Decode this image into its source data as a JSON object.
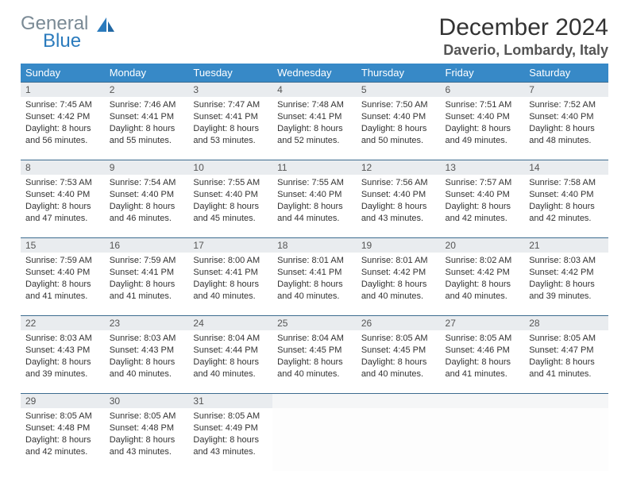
{
  "logo": {
    "word1": "General",
    "word2": "Blue"
  },
  "title": "December 2024",
  "subtitle": "Daverio, Lombardy, Italy",
  "colors": {
    "header_bg": "#3789c7",
    "header_text": "#ffffff",
    "daynum_bg": "#e9ecef",
    "row_border": "#3d6c8f"
  },
  "weekdays": [
    "Sunday",
    "Monday",
    "Tuesday",
    "Wednesday",
    "Thursday",
    "Friday",
    "Saturday"
  ],
  "weeks": [
    [
      {
        "n": "1",
        "sr": "7:45 AM",
        "ss": "4:42 PM",
        "h": "8",
        "m": "56"
      },
      {
        "n": "2",
        "sr": "7:46 AM",
        "ss": "4:41 PM",
        "h": "8",
        "m": "55"
      },
      {
        "n": "3",
        "sr": "7:47 AM",
        "ss": "4:41 PM",
        "h": "8",
        "m": "53"
      },
      {
        "n": "4",
        "sr": "7:48 AM",
        "ss": "4:41 PM",
        "h": "8",
        "m": "52"
      },
      {
        "n": "5",
        "sr": "7:50 AM",
        "ss": "4:40 PM",
        "h": "8",
        "m": "50"
      },
      {
        "n": "6",
        "sr": "7:51 AM",
        "ss": "4:40 PM",
        "h": "8",
        "m": "49"
      },
      {
        "n": "7",
        "sr": "7:52 AM",
        "ss": "4:40 PM",
        "h": "8",
        "m": "48"
      }
    ],
    [
      {
        "n": "8",
        "sr": "7:53 AM",
        "ss": "4:40 PM",
        "h": "8",
        "m": "47"
      },
      {
        "n": "9",
        "sr": "7:54 AM",
        "ss": "4:40 PM",
        "h": "8",
        "m": "46"
      },
      {
        "n": "10",
        "sr": "7:55 AM",
        "ss": "4:40 PM",
        "h": "8",
        "m": "45"
      },
      {
        "n": "11",
        "sr": "7:55 AM",
        "ss": "4:40 PM",
        "h": "8",
        "m": "44"
      },
      {
        "n": "12",
        "sr": "7:56 AM",
        "ss": "4:40 PM",
        "h": "8",
        "m": "43"
      },
      {
        "n": "13",
        "sr": "7:57 AM",
        "ss": "4:40 PM",
        "h": "8",
        "m": "42"
      },
      {
        "n": "14",
        "sr": "7:58 AM",
        "ss": "4:40 PM",
        "h": "8",
        "m": "42"
      }
    ],
    [
      {
        "n": "15",
        "sr": "7:59 AM",
        "ss": "4:40 PM",
        "h": "8",
        "m": "41"
      },
      {
        "n": "16",
        "sr": "7:59 AM",
        "ss": "4:41 PM",
        "h": "8",
        "m": "41"
      },
      {
        "n": "17",
        "sr": "8:00 AM",
        "ss": "4:41 PM",
        "h": "8",
        "m": "40"
      },
      {
        "n": "18",
        "sr": "8:01 AM",
        "ss": "4:41 PM",
        "h": "8",
        "m": "40"
      },
      {
        "n": "19",
        "sr": "8:01 AM",
        "ss": "4:42 PM",
        "h": "8",
        "m": "40"
      },
      {
        "n": "20",
        "sr": "8:02 AM",
        "ss": "4:42 PM",
        "h": "8",
        "m": "40"
      },
      {
        "n": "21",
        "sr": "8:03 AM",
        "ss": "4:42 PM",
        "h": "8",
        "m": "39"
      }
    ],
    [
      {
        "n": "22",
        "sr": "8:03 AM",
        "ss": "4:43 PM",
        "h": "8",
        "m": "39"
      },
      {
        "n": "23",
        "sr": "8:03 AM",
        "ss": "4:43 PM",
        "h": "8",
        "m": "40"
      },
      {
        "n": "24",
        "sr": "8:04 AM",
        "ss": "4:44 PM",
        "h": "8",
        "m": "40"
      },
      {
        "n": "25",
        "sr": "8:04 AM",
        "ss": "4:45 PM",
        "h": "8",
        "m": "40"
      },
      {
        "n": "26",
        "sr": "8:05 AM",
        "ss": "4:45 PM",
        "h": "8",
        "m": "40"
      },
      {
        "n": "27",
        "sr": "8:05 AM",
        "ss": "4:46 PM",
        "h": "8",
        "m": "41"
      },
      {
        "n": "28",
        "sr": "8:05 AM",
        "ss": "4:47 PM",
        "h": "8",
        "m": "41"
      }
    ],
    [
      {
        "n": "29",
        "sr": "8:05 AM",
        "ss": "4:48 PM",
        "h": "8",
        "m": "42"
      },
      {
        "n": "30",
        "sr": "8:05 AM",
        "ss": "4:48 PM",
        "h": "8",
        "m": "43"
      },
      {
        "n": "31",
        "sr": "8:05 AM",
        "ss": "4:49 PM",
        "h": "8",
        "m": "43"
      },
      null,
      null,
      null,
      null
    ]
  ],
  "labels": {
    "sunrise": "Sunrise:",
    "sunset": "Sunset:",
    "daylight_pre": "Daylight:",
    "hours_word": "hours",
    "and_word": "and",
    "minutes_word": "minutes."
  }
}
